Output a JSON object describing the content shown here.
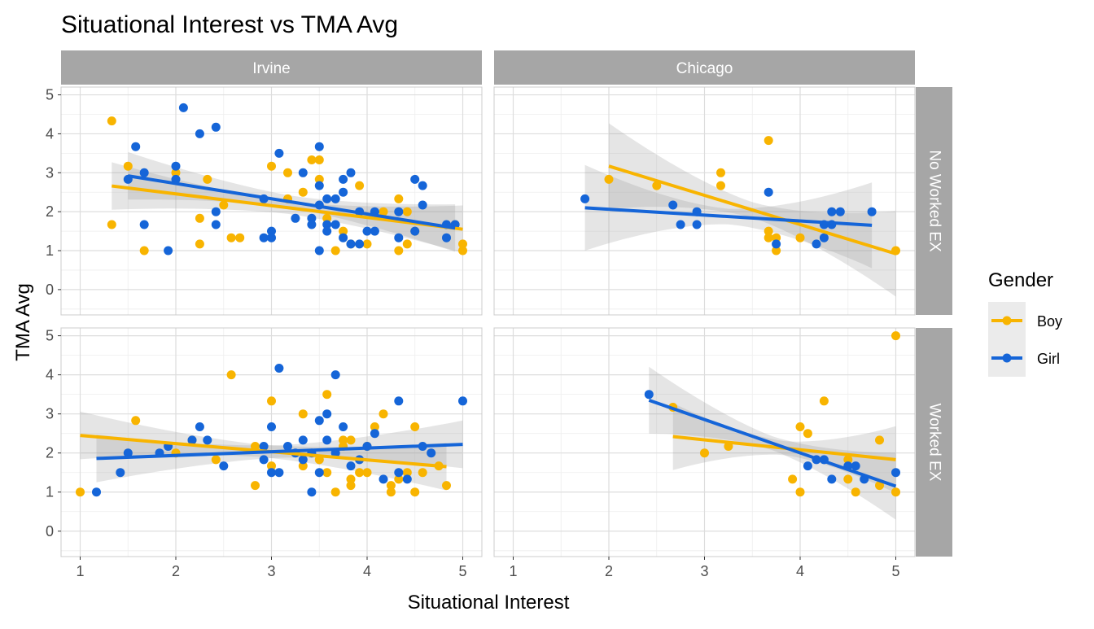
{
  "chart_data": {
    "type": "scatter",
    "title": "Situational Interest vs TMA Avg",
    "xlabel": "Situational Interest",
    "ylabel": "TMA Avg",
    "xlim": [
      0.8,
      5.2
    ],
    "ylim": [
      -0.65,
      5.2
    ],
    "x_ticks": [
      "1",
      "2",
      "3",
      "4",
      "5"
    ],
    "y_ticks": [
      "0",
      "1",
      "2",
      "3",
      "4",
      "5"
    ],
    "columns": [
      "Irvine",
      "Chicago"
    ],
    "rows": [
      "No Worked EX",
      "Worked EX"
    ],
    "legend": {
      "title": "Gender",
      "position": "right",
      "entries": [
        {
          "label": "Boy",
          "color": "#F8B400"
        },
        {
          "label": "Girl",
          "color": "#1565D8"
        }
      ]
    },
    "panels": [
      {
        "column": "Irvine",
        "row": "No Worked EX",
        "series": [
          {
            "name": "Boy",
            "color": "#F8B400",
            "points": [
              [
                1.33,
                4.33
              ],
              [
                1.33,
                1.67
              ],
              [
                1.5,
                3.17
              ],
              [
                1.67,
                1.0
              ],
              [
                2.0,
                3.0
              ],
              [
                2.25,
                1.83
              ],
              [
                2.25,
                1.17
              ],
              [
                2.33,
                2.83
              ],
              [
                2.5,
                2.17
              ],
              [
                2.58,
                1.33
              ],
              [
                2.67,
                1.33
              ],
              [
                3.0,
                3.17
              ],
              [
                3.17,
                3.0
              ],
              [
                3.17,
                2.33
              ],
              [
                3.33,
                2.5
              ],
              [
                3.42,
                3.33
              ],
              [
                3.5,
                3.33
              ],
              [
                3.5,
                2.83
              ],
              [
                3.58,
                1.83
              ],
              [
                3.67,
                1.0
              ],
              [
                3.75,
                1.5
              ],
              [
                3.83,
                1.17
              ],
              [
                3.92,
                2.67
              ],
              [
                4.0,
                1.17
              ],
              [
                4.17,
                2.0
              ],
              [
                4.33,
                2.33
              ],
              [
                4.33,
                1.0
              ],
              [
                4.42,
                2.0
              ],
              [
                4.42,
                1.17
              ],
              [
                4.5,
                1.5
              ],
              [
                4.92,
                1.67
              ],
              [
                5.0,
                1.17
              ],
              [
                5.0,
                1.0
              ]
            ],
            "fit": {
              "x": [
                1.33,
                5.0
              ],
              "y": [
                2.66,
                1.55
              ]
            }
          },
          {
            "name": "Girl",
            "color": "#1565D8",
            "points": [
              [
                1.5,
                2.83
              ],
              [
                1.58,
                3.67
              ],
              [
                1.67,
                3.0
              ],
              [
                1.67,
                1.67
              ],
              [
                1.92,
                1.0
              ],
              [
                2.0,
                3.17
              ],
              [
                2.0,
                2.83
              ],
              [
                2.08,
                4.67
              ],
              [
                2.25,
                4.0
              ],
              [
                2.42,
                4.17
              ],
              [
                2.42,
                2.0
              ],
              [
                2.42,
                1.67
              ],
              [
                2.92,
                2.33
              ],
              [
                2.92,
                1.33
              ],
              [
                3.0,
                1.5
              ],
              [
                3.0,
                1.33
              ],
              [
                3.08,
                3.5
              ],
              [
                3.25,
                1.83
              ],
              [
                3.33,
                3.0
              ],
              [
                3.42,
                1.83
              ],
              [
                3.42,
                1.67
              ],
              [
                3.5,
                3.67
              ],
              [
                3.5,
                2.67
              ],
              [
                3.5,
                2.17
              ],
              [
                3.5,
                1.0
              ],
              [
                3.58,
                2.33
              ],
              [
                3.58,
                1.67
              ],
              [
                3.58,
                1.5
              ],
              [
                3.67,
                2.33
              ],
              [
                3.67,
                1.67
              ],
              [
                3.75,
                2.83
              ],
              [
                3.75,
                2.5
              ],
              [
                3.75,
                1.33
              ],
              [
                3.83,
                3.0
              ],
              [
                3.83,
                1.17
              ],
              [
                3.92,
                2.0
              ],
              [
                3.92,
                1.17
              ],
              [
                4.0,
                1.5
              ],
              [
                4.08,
                2.0
              ],
              [
                4.08,
                1.5
              ],
              [
                4.33,
                2.0
              ],
              [
                4.33,
                1.33
              ],
              [
                4.5,
                2.83
              ],
              [
                4.5,
                1.5
              ],
              [
                4.58,
                2.67
              ],
              [
                4.58,
                2.17
              ],
              [
                4.83,
                1.67
              ],
              [
                4.83,
                1.33
              ],
              [
                4.92,
                1.67
              ]
            ],
            "fit": {
              "x": [
                1.5,
                4.92
              ],
              "y": [
                2.92,
                1.58
              ]
            }
          }
        ]
      },
      {
        "column": "Chicago",
        "row": "No Worked EX",
        "series": [
          {
            "name": "Boy",
            "color": "#F8B400",
            "points": [
              [
                2.0,
                2.83
              ],
              [
                2.5,
                2.67
              ],
              [
                3.17,
                3.0
              ],
              [
                3.17,
                2.67
              ],
              [
                3.67,
                3.83
              ],
              [
                3.67,
                1.5
              ],
              [
                3.67,
                1.33
              ],
              [
                3.75,
                1.33
              ],
              [
                3.75,
                1.0
              ],
              [
                4.0,
                1.33
              ],
              [
                5.0,
                1.0
              ]
            ],
            "fit": {
              "x": [
                2.0,
                5.0
              ],
              "y": [
                3.17,
                0.92
              ]
            }
          },
          {
            "name": "Girl",
            "color": "#1565D8",
            "points": [
              [
                1.75,
                2.33
              ],
              [
                2.67,
                2.17
              ],
              [
                2.75,
                1.67
              ],
              [
                2.92,
                2.0
              ],
              [
                2.92,
                1.67
              ],
              [
                3.67,
                2.5
              ],
              [
                3.75,
                1.17
              ],
              [
                4.17,
                1.17
              ],
              [
                4.25,
                1.67
              ],
              [
                4.25,
                1.33
              ],
              [
                4.33,
                2.0
              ],
              [
                4.33,
                1.67
              ],
              [
                4.42,
                2.0
              ],
              [
                4.75,
                2.0
              ]
            ],
            "fit": {
              "x": [
                1.75,
                4.75
              ],
              "y": [
                2.1,
                1.65
              ]
            }
          }
        ]
      },
      {
        "column": "Irvine",
        "row": "Worked EX",
        "series": [
          {
            "name": "Boy",
            "color": "#F8B400",
            "points": [
              [
                1.0,
                1.0
              ],
              [
                1.58,
                2.83
              ],
              [
                2.0,
                2.0
              ],
              [
                2.17,
                2.33
              ],
              [
                2.42,
                1.83
              ],
              [
                2.58,
                4.0
              ],
              [
                2.83,
                1.17
              ],
              [
                2.83,
                2.17
              ],
              [
                3.0,
                3.33
              ],
              [
                3.0,
                1.67
              ],
              [
                3.33,
                3.0
              ],
              [
                3.33,
                1.67
              ],
              [
                3.5,
                1.83
              ],
              [
                3.58,
                3.5
              ],
              [
                3.58,
                1.5
              ],
              [
                3.67,
                1.0
              ],
              [
                3.75,
                2.33
              ],
              [
                3.75,
                2.17
              ],
              [
                3.83,
                2.33
              ],
              [
                3.83,
                1.33
              ],
              [
                3.83,
                1.17
              ],
              [
                3.92,
                1.5
              ],
              [
                4.0,
                2.17
              ],
              [
                4.0,
                1.5
              ],
              [
                4.08,
                2.67
              ],
              [
                4.17,
                3.0
              ],
              [
                4.25,
                1.17
              ],
              [
                4.25,
                1.0
              ],
              [
                4.33,
                1.33
              ],
              [
                4.42,
                1.5
              ],
              [
                4.5,
                2.67
              ],
              [
                4.5,
                1.0
              ],
              [
                4.58,
                1.5
              ],
              [
                4.75,
                1.67
              ],
              [
                4.83,
                1.17
              ]
            ],
            "fit": {
              "x": [
                1.0,
                4.83
              ],
              "y": [
                2.45,
                1.65
              ]
            }
          },
          {
            "name": "Girl",
            "color": "#1565D8",
            "points": [
              [
                1.17,
                1.0
              ],
              [
                1.42,
                1.5
              ],
              [
                1.5,
                2.0
              ],
              [
                1.83,
                2.0
              ],
              [
                1.92,
                2.17
              ],
              [
                2.17,
                2.33
              ],
              [
                2.25,
                2.67
              ],
              [
                2.33,
                2.33
              ],
              [
                2.5,
                1.67
              ],
              [
                2.92,
                2.17
              ],
              [
                2.92,
                1.83
              ],
              [
                3.0,
                2.67
              ],
              [
                3.0,
                1.5
              ],
              [
                3.08,
                4.17
              ],
              [
                3.08,
                1.5
              ],
              [
                3.17,
                2.17
              ],
              [
                3.25,
                2.0
              ],
              [
                3.33,
                2.33
              ],
              [
                3.33,
                1.83
              ],
              [
                3.42,
                2.0
              ],
              [
                3.42,
                1.0
              ],
              [
                3.5,
                2.83
              ],
              [
                3.5,
                1.5
              ],
              [
                3.58,
                3.0
              ],
              [
                3.58,
                2.33
              ],
              [
                3.67,
                4.0
              ],
              [
                3.67,
                2.0
              ],
              [
                3.75,
                2.67
              ],
              [
                3.83,
                1.67
              ],
              [
                3.92,
                1.83
              ],
              [
                4.0,
                2.17
              ],
              [
                4.08,
                2.5
              ],
              [
                4.17,
                1.33
              ],
              [
                4.33,
                3.33
              ],
              [
                4.33,
                1.5
              ],
              [
                4.42,
                1.33
              ],
              [
                4.58,
                2.17
              ],
              [
                4.67,
                2.0
              ],
              [
                5.0,
                3.33
              ]
            ],
            "fit": {
              "x": [
                1.17,
                5.0
              ],
              "y": [
                1.86,
                2.22
              ]
            }
          }
        ]
      },
      {
        "column": "Chicago",
        "row": "Worked EX",
        "series": [
          {
            "name": "Boy",
            "color": "#F8B400",
            "points": [
              [
                2.67,
                3.17
              ],
              [
                3.0,
                2.0
              ],
              [
                3.25,
                2.17
              ],
              [
                3.92,
                1.33
              ],
              [
                4.0,
                2.67
              ],
              [
                4.0,
                1.0
              ],
              [
                4.08,
                2.5
              ],
              [
                4.25,
                3.33
              ],
              [
                4.5,
                1.83
              ],
              [
                4.5,
                1.33
              ],
              [
                4.58,
                1.0
              ],
              [
                4.83,
                2.33
              ],
              [
                4.83,
                1.17
              ],
              [
                5.0,
                5.0
              ],
              [
                5.0,
                1.0
              ]
            ],
            "fit": {
              "x": [
                2.67,
                5.0
              ],
              "y": [
                2.42,
                1.83
              ]
            }
          },
          {
            "name": "Girl",
            "color": "#1565D8",
            "points": [
              [
                2.42,
                3.5
              ],
              [
                4.08,
                1.67
              ],
              [
                4.17,
                1.83
              ],
              [
                4.25,
                1.83
              ],
              [
                4.33,
                1.33
              ],
              [
                4.5,
                1.67
              ],
              [
                4.58,
                1.67
              ],
              [
                4.67,
                1.33
              ],
              [
                5.0,
                1.5
              ]
            ],
            "fit": {
              "x": [
                2.42,
                5.0
              ],
              "y": [
                3.35,
                1.15
              ]
            }
          }
        ]
      }
    ]
  }
}
